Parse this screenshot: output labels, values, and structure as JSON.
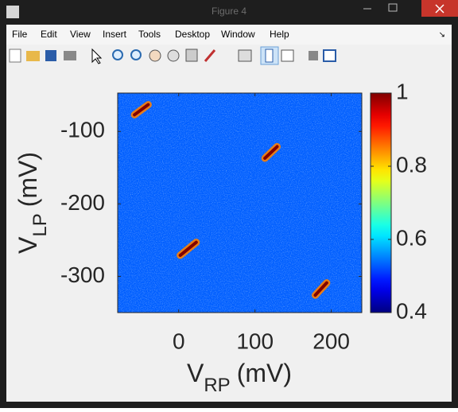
{
  "window": {
    "title": "Figure 4",
    "menu": [
      "File",
      "Edit",
      "View",
      "Insert",
      "Tools",
      "Desktop",
      "Window",
      "Help"
    ]
  },
  "chart_data": {
    "type": "heatmap",
    "x_label": {
      "main": "V",
      "sub": "RP",
      "unit": "(mV)"
    },
    "y_label": {
      "main": "V",
      "sub": "LP",
      "unit": "(mV)"
    },
    "xlim": [
      -80,
      240
    ],
    "xticks": [
      0,
      100,
      200
    ],
    "ylim": [
      -350,
      -47
    ],
    "yticks": [
      -300,
      -200,
      -100
    ],
    "clim": [
      0.4,
      1
    ],
    "cticks": [
      0.4,
      0.6,
      0.8,
      1
    ],
    "colormap": "jet",
    "background_value": 0.53,
    "streaks": [
      {
        "x": [
          -58,
          -40
        ],
        "y": [
          -77,
          -63
        ],
        "value": 1
      },
      {
        "x": [
          113,
          129
        ],
        "y": [
          -137,
          -121
        ],
        "value": 1
      },
      {
        "x": [
          2,
          23
        ],
        "y": [
          -271,
          -253
        ],
        "value": 1
      },
      {
        "x": [
          179,
          194
        ],
        "y": [
          -326,
          -309
        ],
        "value": 1
      }
    ]
  }
}
